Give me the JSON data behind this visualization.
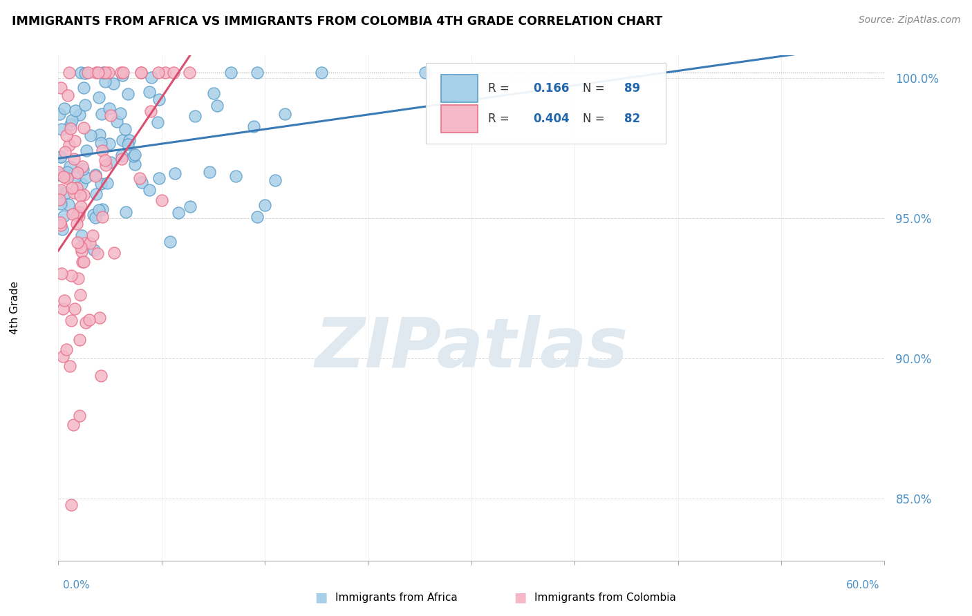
{
  "title": "IMMIGRANTS FROM AFRICA VS IMMIGRANTS FROM COLOMBIA 4TH GRADE CORRELATION CHART",
  "source": "Source: ZipAtlas.com",
  "ylabel": "4th Grade",
  "xlim": [
    0.0,
    0.6
  ],
  "ylim": [
    0.828,
    1.008
  ],
  "yticks": [
    0.85,
    0.9,
    0.95,
    1.0
  ],
  "ytick_labels": [
    "85.0%",
    "90.0%",
    "95.0%",
    "100.0%"
  ],
  "color_africa": "#a8cfe8",
  "color_africa_edge": "#5b9ec9",
  "color_africa_line": "#3a7ab5",
  "color_colombia": "#f4b8c8",
  "color_colombia_edge": "#e8708a",
  "color_colombia_line": "#d94f70",
  "r_africa": 0.166,
  "n_africa": 89,
  "r_colombia": 0.404,
  "n_colombia": 82,
  "watermark": "ZIPatlas",
  "watermark_color": "#e0e8f0"
}
